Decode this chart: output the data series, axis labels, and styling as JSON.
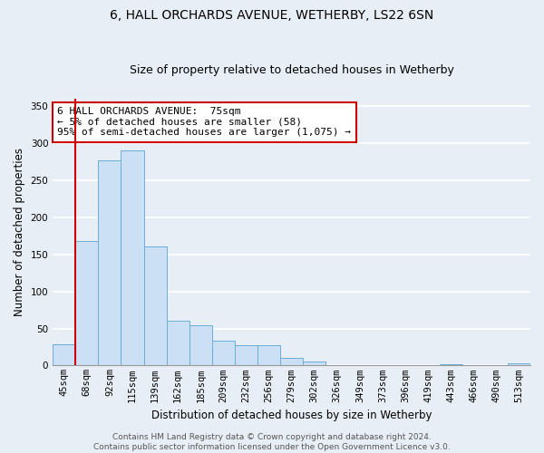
{
  "title": "6, HALL ORCHARDS AVENUE, WETHERBY, LS22 6SN",
  "subtitle": "Size of property relative to detached houses in Wetherby",
  "xlabel": "Distribution of detached houses by size in Wetherby",
  "ylabel": "Number of detached properties",
  "bin_labels": [
    "45sqm",
    "68sqm",
    "92sqm",
    "115sqm",
    "139sqm",
    "162sqm",
    "185sqm",
    "209sqm",
    "232sqm",
    "256sqm",
    "279sqm",
    "302sqm",
    "326sqm",
    "349sqm",
    "373sqm",
    "396sqm",
    "419sqm",
    "443sqm",
    "466sqm",
    "490sqm",
    "513sqm"
  ],
  "bar_heights": [
    29,
    168,
    277,
    290,
    161,
    60,
    54,
    33,
    27,
    27,
    10,
    5,
    1,
    1,
    0,
    0,
    0,
    2,
    0,
    0,
    3
  ],
  "bar_color": "#cce0f5",
  "bar_edge_color": "#6aaed6",
  "vline_x": 0.5,
  "vline_color": "#cc0000",
  "annotation_line1": "6 HALL ORCHARDS AVENUE:  75sqm",
  "annotation_line2": "← 5% of detached houses are smaller (58)",
  "annotation_line3": "95% of semi-detached houses are larger (1,075) →",
  "annotation_box_color": "#ffffff",
  "annotation_box_edge_color": "#cc0000",
  "ylim": [
    0,
    360
  ],
  "yticks": [
    0,
    50,
    100,
    150,
    200,
    250,
    300,
    350
  ],
  "footer_line1": "Contains HM Land Registry data © Crown copyright and database right 2024.",
  "footer_line2": "Contains public sector information licensed under the Open Government Licence v3.0.",
  "background_color": "#e8eef5",
  "plot_background_color": "#e8eef5",
  "grid_color": "#ffffff",
  "title_fontsize": 10,
  "subtitle_fontsize": 9,
  "axis_label_fontsize": 8.5,
  "tick_fontsize": 7.5,
  "annotation_fontsize": 8,
  "footer_fontsize": 6.5
}
